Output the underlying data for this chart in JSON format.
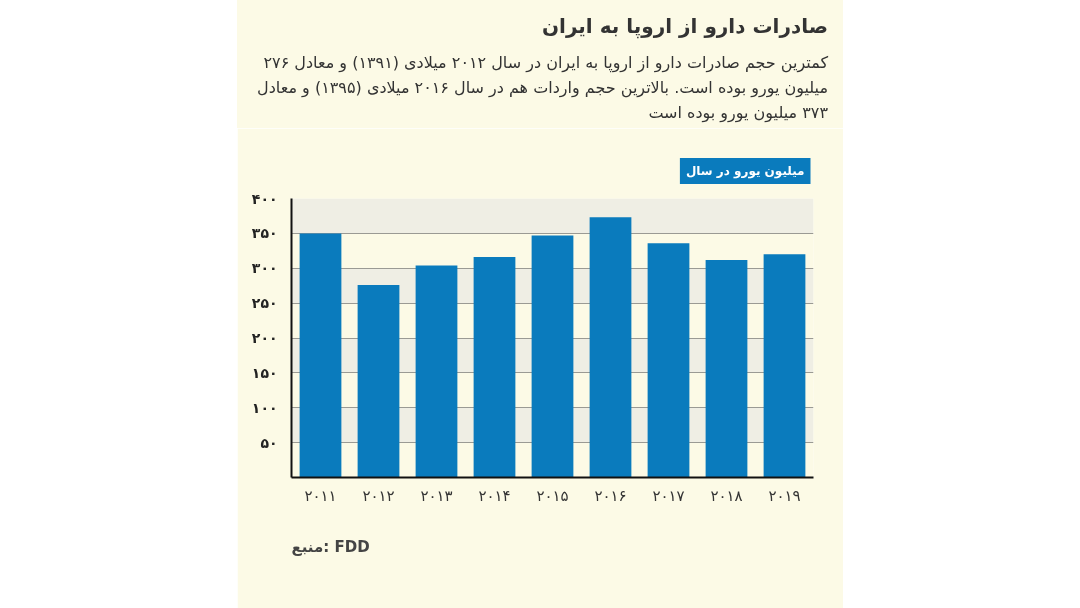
{
  "chart_data": {
    "type": "bar",
    "title": "صادرات دارو از اروپا به ایران",
    "subtitle": "کمترین حجم صادرات دارو از اروپا به ایران در سال ۲۰۱۲ میلادی (۱۳۹۱) و معادل ۲۷۶ میلیون یورو بوده است. بالاترین حجم واردات هم در سال ۲۰۱۶ میلادی (۱۳۹۵) و معادل ۳۷۳ میلیون یورو بوده است",
    "ylabel": "میلیون یورو در سال",
    "annotations": [
      "منبع: FDD"
    ],
    "categories": [
      "۲۰۱۱",
      "۲۰۱۲",
      "۲۰۱۳",
      "۲۰۱۴",
      "۲۰۱۵",
      "۲۰۱۶",
      "۲۰۱۷",
      "۲۰۱۸",
      "۲۰۱۹"
    ],
    "values": [
      350,
      276,
      304,
      316,
      347,
      373,
      336,
      312,
      320
    ],
    "color": "#0a7bbd",
    "ylim": [
      0,
      400
    ],
    "yticks": [
      {
        "value": 50,
        "label": "۵۰"
      },
      {
        "value": 100,
        "label": "۱۰۰"
      },
      {
        "value": 150,
        "label": "۱۵۰"
      },
      {
        "value": 200,
        "label": "۲۰۰"
      },
      {
        "value": 250,
        "label": "۲۵۰"
      },
      {
        "value": 300,
        "label": "۳۰۰"
      },
      {
        "value": 350,
        "label": "۳۵۰"
      },
      {
        "value": 400,
        "label": "۴۰۰"
      }
    ],
    "grid": "y"
  }
}
